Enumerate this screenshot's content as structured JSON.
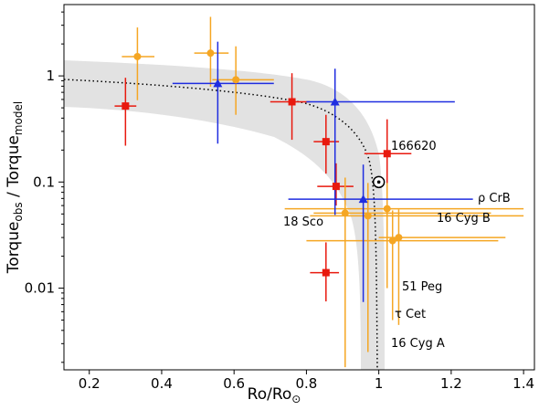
{
  "chart_data": {
    "type": "scatter",
    "x_label": {
      "main": "Ro/Ro",
      "sub": "⊙"
    },
    "y_label": [
      "Torque",
      "obs",
      " / Torque",
      "model"
    ],
    "xlim": [
      0.13,
      1.43
    ],
    "xticks": [
      0.2,
      0.4,
      0.6,
      0.8,
      1.0,
      1.2,
      1.4
    ],
    "ylim": [
      0.0017,
      4.7
    ],
    "yticks": [
      0.01,
      0.1,
      1
    ],
    "log_y": true,
    "series": [
      {
        "color": "#e8190e",
        "marker": "square",
        "x": [
          0.3,
          0.76,
          0.854,
          0.882,
          1.023,
          0.854
        ],
        "values": [
          0.52,
          0.57,
          0.24,
          0.091,
          0.185,
          0.014
        ],
        "x_low": [
          0.27,
          0.7,
          0.82,
          0.83,
          0.96,
          0.81
        ],
        "x_high": [
          0.33,
          0.81,
          0.89,
          0.93,
          1.09,
          0.89
        ],
        "y_low": [
          0.22,
          0.25,
          0.12,
          0.06,
          0.073,
          0.0075
        ],
        "y_high": [
          0.96,
          1.06,
          0.43,
          0.15,
          0.39,
          0.027
        ]
      },
      {
        "color": "#f5a623",
        "marker": "circle",
        "x": [
          0.333,
          0.535,
          0.605,
          0.907,
          0.97,
          1.023,
          1.038,
          1.055
        ],
        "values": [
          1.52,
          1.64,
          0.92,
          0.051,
          0.048,
          0.056,
          0.028,
          0.03
        ],
        "x_low": [
          0.29,
          0.49,
          0.54,
          0.82,
          0.81,
          0.74,
          0.8,
          1.0
        ],
        "x_high": [
          0.38,
          0.585,
          0.71,
          1.31,
          1.4,
          1.4,
          1.33,
          1.35
        ],
        "y_low": [
          0.59,
          0.79,
          0.43,
          0.0018,
          0.0025,
          0.01,
          0.005,
          0.0045
        ],
        "y_high": [
          2.86,
          3.6,
          1.9,
          0.11,
          0.098,
          0.098,
          0.054,
          0.055
        ]
      },
      {
        "color": "#1f2de0",
        "marker": "triangle",
        "x": [
          0.555,
          0.879,
          0.957
        ],
        "values": [
          0.85,
          0.57,
          0.069
        ],
        "x_low": [
          0.43,
          0.8,
          0.75
        ],
        "x_high": [
          0.71,
          1.21,
          1.26
        ],
        "y_low": [
          0.23,
          0.049,
          0.0074
        ],
        "y_high": [
          2.1,
          1.17,
          0.146
        ]
      }
    ],
    "sun": {
      "x": 1.0,
      "value": 0.1
    },
    "annotations": [
      "166620",
      "ρ CrB",
      "18 Sco",
      "16 Cyg B",
      "51 Peg",
      "τ Cet",
      "16 Cyg A"
    ]
  }
}
